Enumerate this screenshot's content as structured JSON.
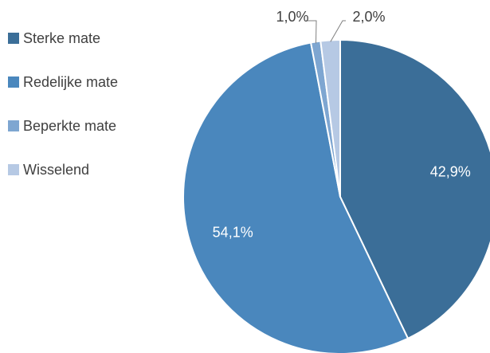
{
  "chart_data": {
    "type": "pie",
    "title": "",
    "legend_position": "left",
    "start_angle_deg": 0,
    "direction": "clockwise",
    "slices": [
      {
        "label": "Sterke mate",
        "value": 42.9,
        "value_label": "42,9%",
        "color": "#3B6E98",
        "label_color": "#ffffff",
        "label_placement": "inside"
      },
      {
        "label": "Redelijke mate",
        "value": 54.1,
        "value_label": "54,1%",
        "color": "#4A87BD",
        "label_color": "#ffffff",
        "label_placement": "inside"
      },
      {
        "label": "Beperkte mate",
        "value": 1.0,
        "value_label": "1,0%",
        "color": "#7EA6D1",
        "label_color": "#404040",
        "label_placement": "outside-leader"
      },
      {
        "label": "Wisselend",
        "value": 2.0,
        "value_label": "2,0%",
        "color": "#B6C9E4",
        "label_color": "#404040",
        "label_placement": "outside-leader"
      }
    ]
  }
}
